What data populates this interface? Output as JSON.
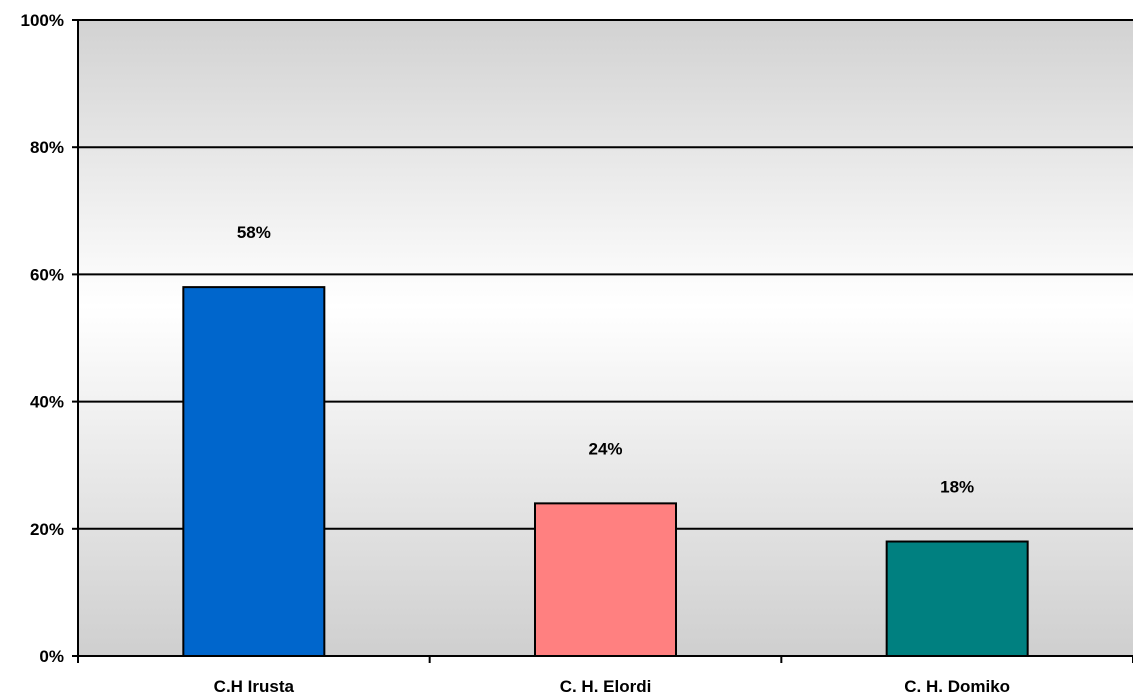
{
  "chart_data": {
    "type": "bar",
    "categories": [
      "C.H Irusta",
      "C. H. Elordi",
      "C. H. Domiko"
    ],
    "values": [
      58,
      24,
      18
    ],
    "data_labels": [
      "58%",
      "24%",
      "18%"
    ],
    "colors": [
      "#0066CC",
      "#FF8080",
      "#008080"
    ],
    "ylim": [
      0,
      100
    ],
    "yticks": [
      0,
      20,
      40,
      60,
      80,
      100
    ],
    "ytick_labels": [
      "0%",
      "20%",
      "40%",
      "60%",
      "80%",
      "100%"
    ],
    "grid": true,
    "legend": "none",
    "title": "",
    "xlabel": "",
    "ylabel": ""
  }
}
